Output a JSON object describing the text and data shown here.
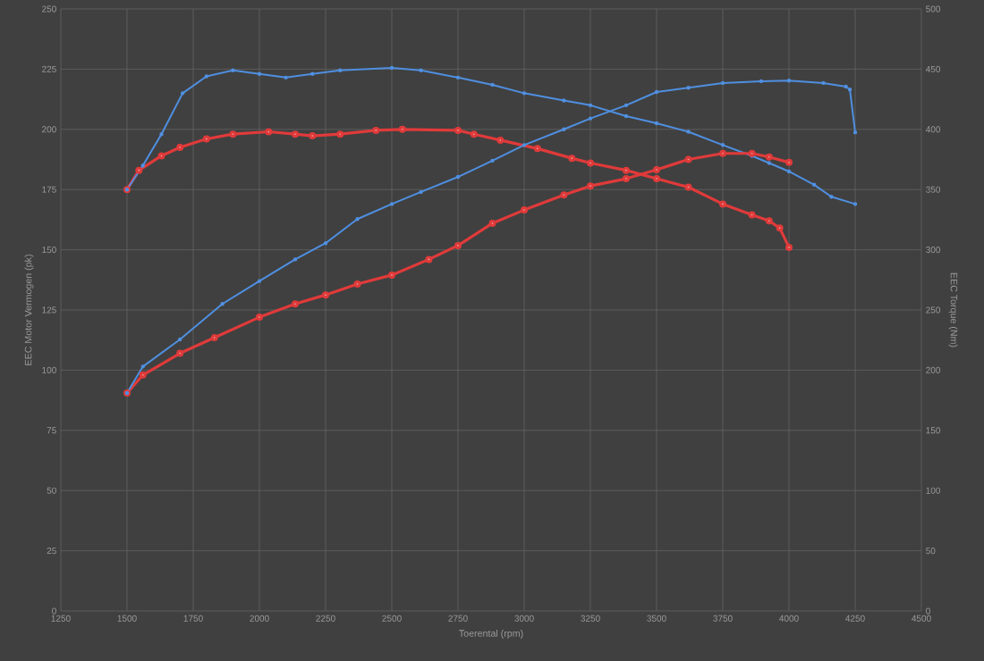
{
  "chart_data": {
    "type": "line",
    "xlabel": "Toerental (rpm)",
    "ylabel": "EEC Motor Vermogen (pk)",
    "y2label": "EEC Torque (Nm)",
    "xlim": [
      1250,
      4500
    ],
    "xticks": [
      1250,
      1500,
      1750,
      2000,
      2250,
      2500,
      2750,
      3000,
      3250,
      3500,
      3750,
      4000,
      4250,
      4500
    ],
    "ylim": [
      0,
      250
    ],
    "yticks": [
      0,
      25,
      50,
      75,
      100,
      125,
      150,
      175,
      200,
      225,
      250
    ],
    "y2lim": [
      0,
      500
    ],
    "y2ticks": [
      0,
      50,
      100,
      150,
      200,
      250,
      300,
      350,
      400,
      450,
      500
    ],
    "grid": true,
    "marker": "circle",
    "series": [
      {
        "color": "#e03a3a",
        "x": [
          1500,
          1545,
          1630,
          1700,
          1800,
          1900,
          2035,
          2135,
          2200,
          2305,
          2440,
          2540,
          2750,
          2810,
          2910,
          3050,
          3180,
          3250,
          3385,
          3500,
          3620,
          3750,
          3860,
          3925,
          3965,
          4000
        ],
        "values": [
          175,
          183,
          189,
          192.5,
          196,
          198,
          199,
          198,
          197.3,
          198,
          199.6,
          200,
          199.6,
          198,
          195.5,
          192,
          188,
          186,
          183,
          179.5,
          176,
          169,
          164.5,
          162,
          159,
          151
        ]
      },
      {
        "color": "#4f8fe0",
        "x": [
          1500,
          1560,
          1630,
          1710,
          1800,
          1900,
          2000,
          2100,
          2200,
          2305,
          2500,
          2610,
          2750,
          2880,
          3000,
          3150,
          3250,
          3385,
          3500,
          3620,
          3750,
          3860,
          3925,
          4000,
          4095,
          4160,
          4250
        ],
        "values": [
          175,
          185,
          198,
          215,
          222,
          224.5,
          223,
          221.5,
          223,
          224.5,
          225.5,
          224.5,
          221.5,
          218.5,
          215,
          212,
          210,
          205.5,
          202.5,
          199,
          193.5,
          189,
          186,
          182.5,
          177,
          172,
          169
        ]
      },
      {
        "axis": "y2",
        "color": "#e03a3a",
        "x": [
          1500,
          1560,
          1700,
          1830,
          2000,
          2135,
          2250,
          2370,
          2500,
          2640,
          2750,
          2880,
          3000,
          3150,
          3250,
          3385,
          3500,
          3620,
          3750,
          3860,
          3925,
          4000
        ],
        "values": [
          181,
          196,
          214,
          227,
          244,
          255,
          262.5,
          271.5,
          279,
          292,
          303.5,
          322,
          333,
          345.5,
          353,
          359,
          366.5,
          375,
          380,
          380,
          377,
          372.5
        ]
      },
      {
        "axis": "y2",
        "color": "#4f8fe0",
        "x": [
          1500,
          1560,
          1700,
          1860,
          2000,
          2135,
          2250,
          2370,
          2500,
          2610,
          2750,
          2880,
          3000,
          3150,
          3250,
          3385,
          3500,
          3620,
          3750,
          3895,
          4000,
          4130,
          4215,
          4230,
          4250
        ],
        "values": [
          181,
          203,
          225.5,
          255,
          274,
          292,
          305.5,
          325.5,
          338,
          348,
          360.5,
          374,
          387,
          400,
          409,
          420,
          431,
          434.5,
          438.5,
          440,
          440.5,
          438.5,
          435.5,
          433,
          397.5
        ]
      }
    ]
  }
}
